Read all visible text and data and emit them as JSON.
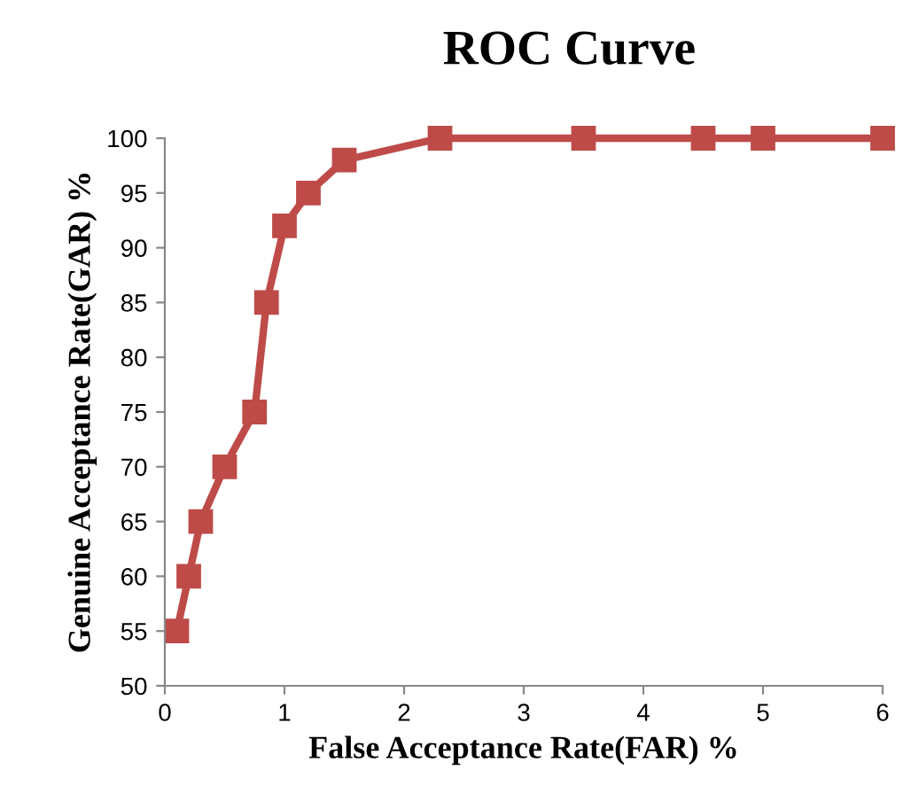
{
  "chart_data": {
    "type": "line",
    "title": "ROC Curve",
    "xlabel": "False Acceptance Rate(FAR) %",
    "ylabel": "Genuine Acceptance Rate(GAR) %",
    "x": [
      0.1,
      0.2,
      0.3,
      0.5,
      0.75,
      0.85,
      1.0,
      1.2,
      1.5,
      2.3,
      3.5,
      4.5,
      5,
      6
    ],
    "series": [
      {
        "color": "#be4b48",
        "values": [
          55,
          60,
          65,
          70,
          75,
          85,
          92,
          95,
          98,
          100,
          100,
          100,
          100,
          100
        ]
      }
    ],
    "xlim": [
      0,
      6
    ],
    "xticks": [
      0,
      1,
      2,
      3,
      4,
      5,
      6
    ],
    "ylim": [
      50,
      100
    ],
    "yticks": [
      50,
      55,
      60,
      65,
      70,
      75,
      80,
      85,
      90,
      95,
      100
    ],
    "grid": false,
    "legend": false,
    "marker": "square",
    "line_style": "solid"
  }
}
